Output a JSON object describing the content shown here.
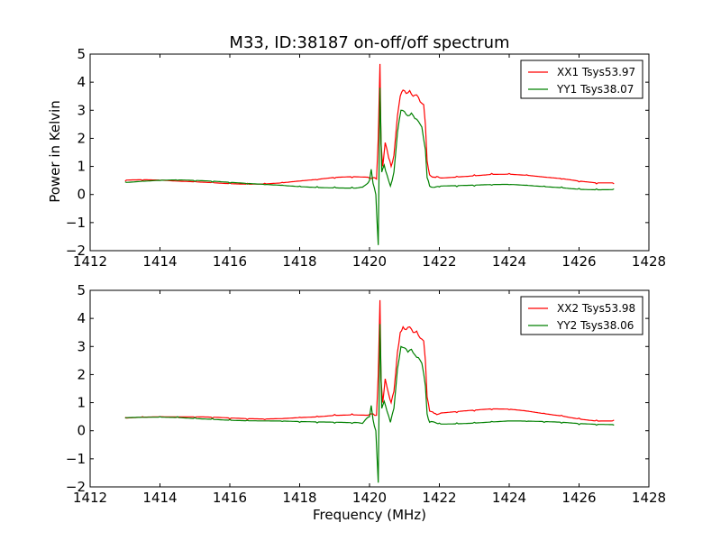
{
  "chart_data": {
    "type": "line",
    "title": "M33, ID:38187 on-off/off spectrum",
    "xlabel": "Frequency (MHz)",
    "ylabel": "Power in Kelvin",
    "xlim": [
      1412,
      1428
    ],
    "ylim": [
      -2,
      5
    ],
    "xticks": [
      "1412",
      "1414",
      "1416",
      "1418",
      "1420",
      "1422",
      "1424",
      "1426",
      "1428"
    ],
    "yticks": [
      "−2",
      "−1",
      "0",
      "1",
      "2",
      "3",
      "4",
      "5"
    ],
    "grid": false,
    "legend_position": "top-right",
    "colors": {
      "red": "#ff0000",
      "green": "#008000"
    },
    "panels": [
      {
        "series": [
          {
            "name": "XX1 Tsys53.97",
            "color": "#ff0000",
            "points": [
              [
                1413.0,
                0.48
              ],
              [
                1413.5,
                0.5
              ],
              [
                1414.0,
                0.5
              ],
              [
                1414.5,
                0.48
              ],
              [
                1415.0,
                0.47
              ],
              [
                1415.5,
                0.45
              ],
              [
                1416.0,
                0.42
              ],
              [
                1416.5,
                0.4
              ],
              [
                1417.0,
                0.4
              ],
              [
                1417.5,
                0.43
              ],
              [
                1418.0,
                0.48
              ],
              [
                1418.5,
                0.52
              ],
              [
                1419.0,
                0.58
              ],
              [
                1419.5,
                0.6
              ],
              [
                1420.0,
                0.58
              ],
              [
                1420.1,
                0.6
              ],
              [
                1420.2,
                0.55
              ],
              [
                1420.25,
                2.0
              ],
              [
                1420.3,
                4.65
              ],
              [
                1420.33,
                1.8
              ],
              [
                1420.38,
                1.0
              ],
              [
                1420.45,
                1.85
              ],
              [
                1420.55,
                1.3
              ],
              [
                1420.62,
                1.0
              ],
              [
                1420.7,
                1.4
              ],
              [
                1420.8,
                2.8
              ],
              [
                1420.88,
                3.5
              ],
              [
                1420.96,
                3.72
              ],
              [
                1421.05,
                3.6
              ],
              [
                1421.15,
                3.7
              ],
              [
                1421.25,
                3.5
              ],
              [
                1421.35,
                3.55
              ],
              [
                1421.45,
                3.3
              ],
              [
                1421.55,
                3.2
              ],
              [
                1421.6,
                2.5
              ],
              [
                1421.65,
                1.2
              ],
              [
                1421.72,
                0.7
              ],
              [
                1421.85,
                0.62
              ],
              [
                1422.0,
                0.6
              ],
              [
                1422.5,
                0.65
              ],
              [
                1423.0,
                0.7
              ],
              [
                1423.5,
                0.75
              ],
              [
                1424.0,
                0.75
              ],
              [
                1424.5,
                0.7
              ],
              [
                1425.0,
                0.62
              ],
              [
                1425.5,
                0.55
              ],
              [
                1426.0,
                0.45
              ],
              [
                1426.5,
                0.38
              ],
              [
                1427.0,
                0.38
              ]
            ]
          },
          {
            "name": "YY1 Tsys38.07",
            "color": "#008000",
            "points": [
              [
                1413.0,
                0.45
              ],
              [
                1413.5,
                0.48
              ],
              [
                1414.0,
                0.5
              ],
              [
                1414.5,
                0.5
              ],
              [
                1415.0,
                0.47
              ],
              [
                1415.5,
                0.44
              ],
              [
                1416.0,
                0.4
              ],
              [
                1416.5,
                0.37
              ],
              [
                1417.0,
                0.35
              ],
              [
                1417.5,
                0.33
              ],
              [
                1418.0,
                0.3
              ],
              [
                1418.5,
                0.28
              ],
              [
                1419.0,
                0.27
              ],
              [
                1419.5,
                0.26
              ],
              [
                1419.8,
                0.26
              ],
              [
                1420.0,
                0.5
              ],
              [
                1420.05,
                0.9
              ],
              [
                1420.1,
                0.4
              ],
              [
                1420.18,
                0.0
              ],
              [
                1420.25,
                -1.8
              ],
              [
                1420.3,
                3.8
              ],
              [
                1420.35,
                0.8
              ],
              [
                1420.42,
                1.05
              ],
              [
                1420.5,
                0.7
              ],
              [
                1420.6,
                0.3
              ],
              [
                1420.7,
                0.8
              ],
              [
                1420.8,
                2.2
              ],
              [
                1420.9,
                3.0
              ],
              [
                1421.0,
                2.95
              ],
              [
                1421.1,
                2.8
              ],
              [
                1421.2,
                2.9
              ],
              [
                1421.3,
                2.7
              ],
              [
                1421.4,
                2.6
              ],
              [
                1421.5,
                2.4
              ],
              [
                1421.6,
                1.6
              ],
              [
                1421.65,
                0.6
              ],
              [
                1421.72,
                0.3
              ],
              [
                1422.0,
                0.27
              ],
              [
                1422.5,
                0.28
              ],
              [
                1423.0,
                0.3
              ],
              [
                1423.5,
                0.33
              ],
              [
                1424.0,
                0.35
              ],
              [
                1424.5,
                0.33
              ],
              [
                1425.0,
                0.3
              ],
              [
                1425.5,
                0.27
              ],
              [
                1426.0,
                0.22
              ],
              [
                1426.5,
                0.2
              ],
              [
                1427.0,
                0.2
              ]
            ]
          }
        ]
      },
      {
        "series": [
          {
            "name": "XX2 Tsys53.98",
            "color": "#ff0000",
            "points": [
              [
                1413.0,
                0.48
              ],
              [
                1413.5,
                0.5
              ],
              [
                1414.0,
                0.5
              ],
              [
                1414.5,
                0.48
              ],
              [
                1415.0,
                0.47
              ],
              [
                1415.5,
                0.45
              ],
              [
                1416.0,
                0.42
              ],
              [
                1416.5,
                0.4
              ],
              [
                1417.0,
                0.4
              ],
              [
                1417.5,
                0.43
              ],
              [
                1418.0,
                0.48
              ],
              [
                1418.5,
                0.52
              ],
              [
                1419.0,
                0.58
              ],
              [
                1419.5,
                0.6
              ],
              [
                1420.0,
                0.58
              ],
              [
                1420.1,
                0.6
              ],
              [
                1420.2,
                0.55
              ],
              [
                1420.25,
                2.0
              ],
              [
                1420.3,
                4.65
              ],
              [
                1420.33,
                1.8
              ],
              [
                1420.38,
                1.0
              ],
              [
                1420.45,
                1.85
              ],
              [
                1420.55,
                1.3
              ],
              [
                1420.62,
                1.0
              ],
              [
                1420.7,
                1.4
              ],
              [
                1420.8,
                2.8
              ],
              [
                1420.88,
                3.5
              ],
              [
                1420.96,
                3.7
              ],
              [
                1421.05,
                3.6
              ],
              [
                1421.15,
                3.7
              ],
              [
                1421.25,
                3.5
              ],
              [
                1421.35,
                3.55
              ],
              [
                1421.45,
                3.3
              ],
              [
                1421.55,
                3.2
              ],
              [
                1421.6,
                2.5
              ],
              [
                1421.65,
                1.2
              ],
              [
                1421.72,
                0.7
              ],
              [
                1421.85,
                0.62
              ],
              [
                1422.0,
                0.6
              ],
              [
                1422.5,
                0.65
              ],
              [
                1423.0,
                0.7
              ],
              [
                1423.5,
                0.75
              ],
              [
                1424.0,
                0.75
              ],
              [
                1424.5,
                0.7
              ],
              [
                1425.0,
                0.62
              ],
              [
                1425.5,
                0.55
              ],
              [
                1426.0,
                0.45
              ],
              [
                1426.5,
                0.38
              ],
              [
                1427.0,
                0.38
              ]
            ]
          },
          {
            "name": "YY2 Tsys38.06",
            "color": "#008000",
            "points": [
              [
                1413.0,
                0.45
              ],
              [
                1413.5,
                0.48
              ],
              [
                1414.0,
                0.5
              ],
              [
                1414.5,
                0.5
              ],
              [
                1415.0,
                0.47
              ],
              [
                1415.5,
                0.44
              ],
              [
                1416.0,
                0.4
              ],
              [
                1416.5,
                0.37
              ],
              [
                1417.0,
                0.35
              ],
              [
                1417.5,
                0.33
              ],
              [
                1418.0,
                0.3
              ],
              [
                1418.5,
                0.28
              ],
              [
                1419.0,
                0.27
              ],
              [
                1419.5,
                0.26
              ],
              [
                1419.8,
                0.26
              ],
              [
                1420.0,
                0.5
              ],
              [
                1420.05,
                0.9
              ],
              [
                1420.1,
                0.4
              ],
              [
                1420.18,
                0.0
              ],
              [
                1420.25,
                -1.85
              ],
              [
                1420.3,
                3.8
              ],
              [
                1420.35,
                0.8
              ],
              [
                1420.42,
                1.05
              ],
              [
                1420.5,
                0.7
              ],
              [
                1420.6,
                0.3
              ],
              [
                1420.7,
                0.8
              ],
              [
                1420.8,
                2.2
              ],
              [
                1420.9,
                3.0
              ],
              [
                1421.0,
                2.95
              ],
              [
                1421.1,
                2.8
              ],
              [
                1421.2,
                2.9
              ],
              [
                1421.3,
                2.7
              ],
              [
                1421.4,
                2.6
              ],
              [
                1421.5,
                2.4
              ],
              [
                1421.6,
                1.6
              ],
              [
                1421.65,
                0.6
              ],
              [
                1421.72,
                0.3
              ],
              [
                1422.0,
                0.27
              ],
              [
                1422.5,
                0.28
              ],
              [
                1423.0,
                0.3
              ],
              [
                1423.5,
                0.33
              ],
              [
                1424.0,
                0.35
              ],
              [
                1424.5,
                0.33
              ],
              [
                1425.0,
                0.3
              ],
              [
                1425.5,
                0.27
              ],
              [
                1426.0,
                0.22
              ],
              [
                1426.5,
                0.2
              ],
              [
                1427.0,
                0.2
              ]
            ]
          }
        ]
      }
    ]
  }
}
